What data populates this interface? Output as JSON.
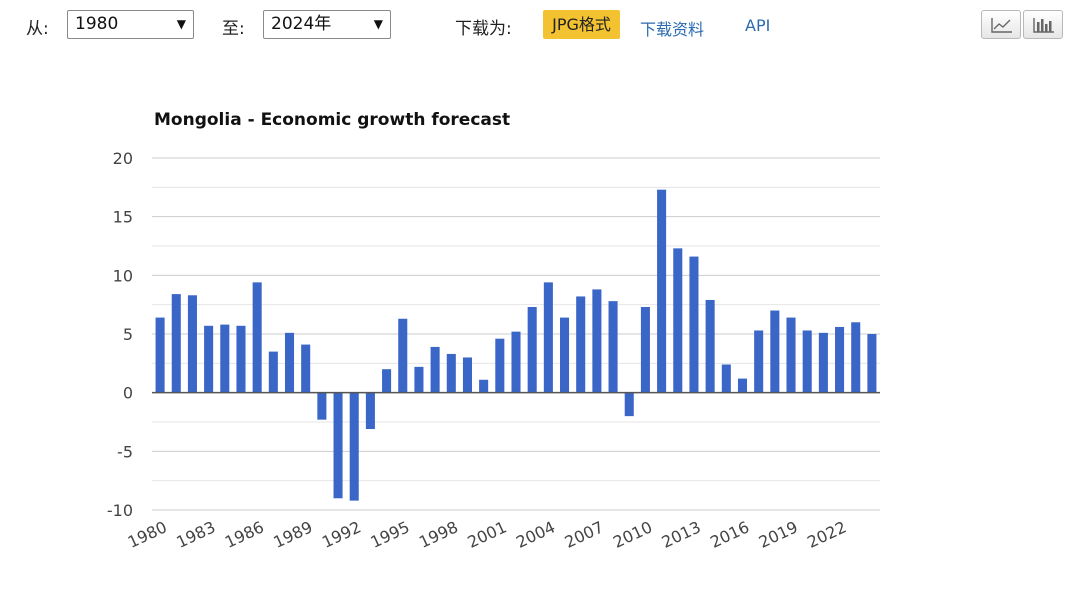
{
  "controls": {
    "from_label": "从:",
    "from_value": "1980",
    "to_label": "至:",
    "to_value": "2024年",
    "download_as_label": "下载为:",
    "jpg_button": "JPG格式",
    "download_data_link": "下载资料",
    "api_link": "API",
    "dropdown_arrow": "▼",
    "icons": [
      "line-chart-icon",
      "bar-chart-icon"
    ]
  },
  "chart_data": {
    "type": "bar",
    "title": "Mongolia - Economic growth forecast",
    "xlabel": "",
    "ylabel": "",
    "ylim": [
      -10,
      20
    ],
    "yticks": [
      20,
      15,
      10,
      5,
      0,
      -5,
      -10
    ],
    "grid": true,
    "bar_color": "#3a66c8",
    "categories": [
      "1980",
      "1981",
      "1982",
      "1983",
      "1984",
      "1985",
      "1986",
      "1987",
      "1988",
      "1989",
      "1990",
      "1991",
      "1992",
      "1993",
      "1994",
      "1995",
      "1996",
      "1997",
      "1998",
      "1999",
      "2000",
      "2001",
      "2002",
      "2003",
      "2004",
      "2005",
      "2006",
      "2007",
      "2008",
      "2009",
      "2010",
      "2011",
      "2012",
      "2013",
      "2014",
      "2015",
      "2016",
      "2017",
      "2018",
      "2019",
      "2020",
      "2021",
      "2022",
      "2023",
      "2024"
    ],
    "xtick_labels": [
      "1980",
      "1983",
      "1986",
      "1989",
      "1992",
      "1995",
      "1998",
      "2001",
      "2004",
      "2007",
      "2010",
      "2013",
      "2016",
      "2019",
      "2022"
    ],
    "values": [
      6.4,
      8.4,
      8.3,
      5.7,
      5.8,
      5.7,
      9.4,
      3.5,
      5.1,
      4.1,
      -2.3,
      -9.0,
      -9.2,
      -3.1,
      2.0,
      6.3,
      2.2,
      3.9,
      3.3,
      3.0,
      1.1,
      4.6,
      5.2,
      7.3,
      9.4,
      6.4,
      8.2,
      8.8,
      7.8,
      -2.0,
      7.3,
      17.3,
      12.3,
      11.6,
      7.9,
      2.4,
      1.2,
      5.3,
      7.0,
      6.4,
      5.3,
      5.1,
      5.6,
      6.0,
      5.0
    ]
  }
}
